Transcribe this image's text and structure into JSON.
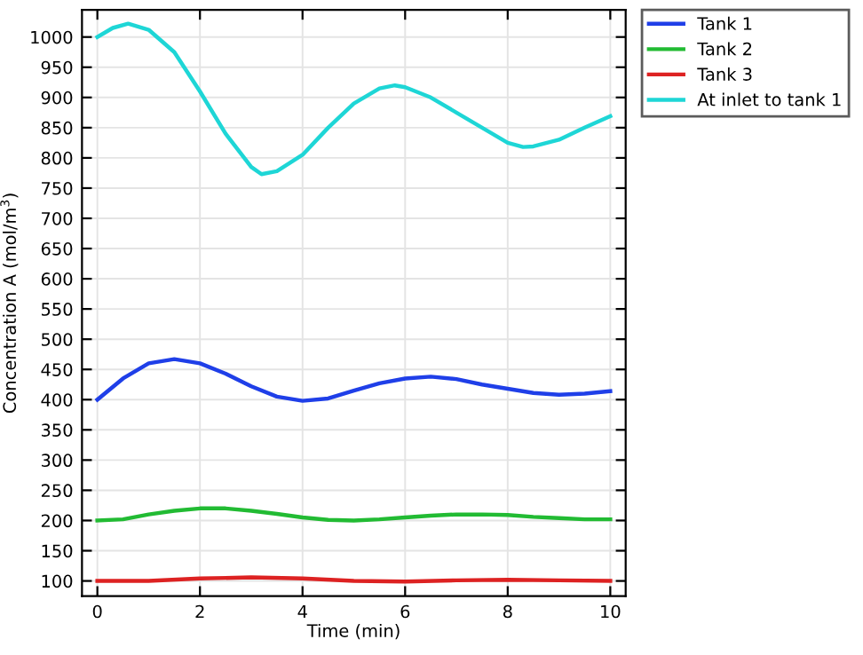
{
  "chart_data": {
    "type": "line",
    "xlabel": "Time (min)",
    "ylabel": "Concentration A (mol/m$^{3}$)",
    "xlim": [
      -0.3,
      10.3
    ],
    "ylim": [
      75,
      1045
    ],
    "xticks": [
      0,
      2,
      4,
      6,
      8,
      10
    ],
    "yticks": [
      100,
      150,
      200,
      250,
      300,
      350,
      400,
      450,
      500,
      550,
      600,
      650,
      700,
      750,
      800,
      850,
      900,
      950,
      1000
    ],
    "grid": true,
    "legend": "top right",
    "marker": "none",
    "line_style": "solid",
    "series": [
      {
        "name": "Tank 1",
        "color": "#1f3fe8",
        "x": [
          0,
          0.5,
          1,
          1.5,
          2,
          2.5,
          3,
          3.5,
          4,
          4.5,
          5,
          5.5,
          6,
          6.5,
          7,
          7.5,
          8,
          8.5,
          9,
          9.5,
          10
        ],
        "values": [
          400,
          435,
          460,
          467,
          460,
          443,
          422,
          405,
          398,
          402,
          415,
          427,
          435,
          438,
          434,
          425,
          418,
          411,
          408,
          410,
          414
        ]
      },
      {
        "name": "Tank 2",
        "color": "#22bb33",
        "x": [
          0,
          0.5,
          1,
          1.5,
          2,
          2.5,
          3,
          3.5,
          4,
          4.5,
          5,
          5.5,
          6,
          6.5,
          7,
          7.5,
          8,
          8.5,
          9,
          9.5,
          10
        ],
        "values": [
          200,
          202,
          210,
          216,
          220,
          220,
          216,
          211,
          205,
          201,
          200,
          202,
          205,
          208,
          210,
          210,
          209,
          206,
          204,
          202,
          202
        ]
      },
      {
        "name": "Tank 3",
        "color": "#dd2222",
        "x": [
          0,
          1,
          2,
          3,
          4,
          5,
          6,
          7,
          8,
          9,
          10
        ],
        "values": [
          100,
          100,
          104,
          106,
          104,
          100,
          99,
          101,
          102,
          101,
          100
        ]
      },
      {
        "name": "At inlet to tank 1",
        "color": "#1ed6d6",
        "x": [
          0,
          0.3,
          0.6,
          1,
          1.5,
          2,
          2.5,
          3,
          3.2,
          3.5,
          4,
          4.5,
          5,
          5.5,
          5.8,
          6,
          6.5,
          7,
          7.5,
          8,
          8.3,
          8.5,
          9,
          9.5,
          10
        ],
        "values": [
          1000,
          1015,
          1022,
          1012,
          975,
          910,
          840,
          785,
          773,
          778,
          805,
          850,
          890,
          915,
          920,
          917,
          900,
          875,
          850,
          825,
          818,
          819,
          830,
          850,
          869
        ]
      }
    ]
  }
}
